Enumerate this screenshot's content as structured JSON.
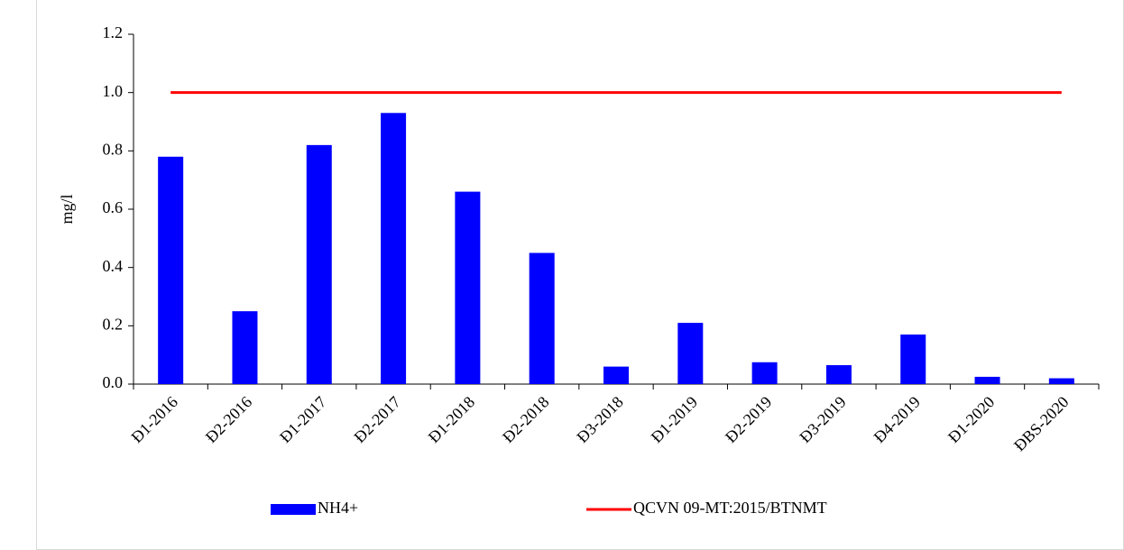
{
  "chart_data": {
    "type": "bar",
    "y_label": "mg/l",
    "categories": [
      "Đ1-2016",
      "Đ2-2016",
      "Đ1-2017",
      "Đ2-2017",
      "Đ1-2018",
      "Đ2-2018",
      "Đ3-2018",
      "Đ1-2019",
      "Đ2-2019",
      "Đ3-2019",
      "Đ4-2019",
      "Đ1-2020",
      "ĐBS-2020"
    ],
    "series": [
      {
        "name": "NH4+",
        "type": "bar",
        "color": "#0000ff",
        "values": [
          0.78,
          0.25,
          0.82,
          0.93,
          0.66,
          0.45,
          0.06,
          0.21,
          0.075,
          0.065,
          0.17,
          0.025,
          0.02
        ]
      },
      {
        "name": "QCVN 09-MT:2015/BTNMT",
        "type": "line",
        "color": "#ff0000",
        "values": [
          1,
          1,
          1,
          1,
          1,
          1,
          1,
          1,
          1,
          1,
          1,
          1,
          1
        ]
      }
    ],
    "ylim": [
      0,
      1.2
    ],
    "yticks": [
      {
        "value": 0,
        "label": "0.0"
      },
      0.2,
      0.4,
      0.6,
      0.8,
      {
        "value": 1,
        "label": "1.0"
      },
      1.2
    ],
    "grid": false,
    "legend": "bottom"
  }
}
